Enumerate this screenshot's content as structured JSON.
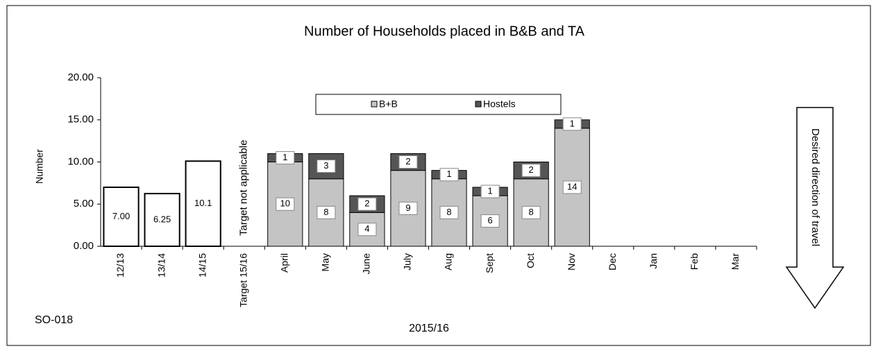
{
  "chart_data": {
    "type": "bar",
    "stacked": true,
    "title": "Number of Households placed in B&B and TA",
    "y_label": "Number",
    "x_label": "2015/16",
    "annotations": [
      "Target not applicable",
      "Desired direction of travel",
      "SO-018"
    ],
    "categories": [
      "12/13",
      "13/14",
      "14/15",
      "Target 15/16",
      "April",
      "May",
      "June",
      "July",
      "Aug",
      "Sept",
      "Oct",
      "Nov",
      "Dec",
      "Jan",
      "Feb",
      "Mar"
    ],
    "series": [
      {
        "name": "B+B",
        "color": "#c4c4c4",
        "colors": [
          "#ffffff",
          "#ffffff",
          "#ffffff",
          null,
          "#c4c4c4",
          "#c4c4c4",
          "#c4c4c4",
          "#c4c4c4",
          "#c4c4c4",
          "#c4c4c4",
          "#c4c4c4",
          "#c4c4c4",
          null,
          null,
          null,
          null
        ],
        "values": [
          7,
          6.25,
          10.1,
          null,
          10,
          8,
          4,
          9,
          8,
          6,
          8,
          14,
          null,
          null,
          null,
          null
        ],
        "value_labels": [
          "7.00",
          "6.25",
          "10.1",
          null,
          "10",
          "8",
          "4",
          "9",
          "8",
          "6",
          "8",
          "14",
          null,
          null,
          null,
          null
        ]
      },
      {
        "name": "Hostels",
        "color": "#555555",
        "values": [
          null,
          null,
          null,
          null,
          1,
          3,
          2,
          2,
          1,
          1,
          2,
          1,
          null,
          null,
          null,
          null
        ]
      }
    ],
    "ylim": [
      0,
      20
    ],
    "yticks": [
      {
        "value": 0,
        "label": "0.00"
      },
      {
        "value": 5,
        "label": "5.00"
      },
      {
        "value": 10,
        "label": "10.00"
      },
      {
        "value": 15,
        "label": "15.00"
      },
      {
        "value": 20,
        "label": "20.00"
      }
    ],
    "grid": false
  }
}
